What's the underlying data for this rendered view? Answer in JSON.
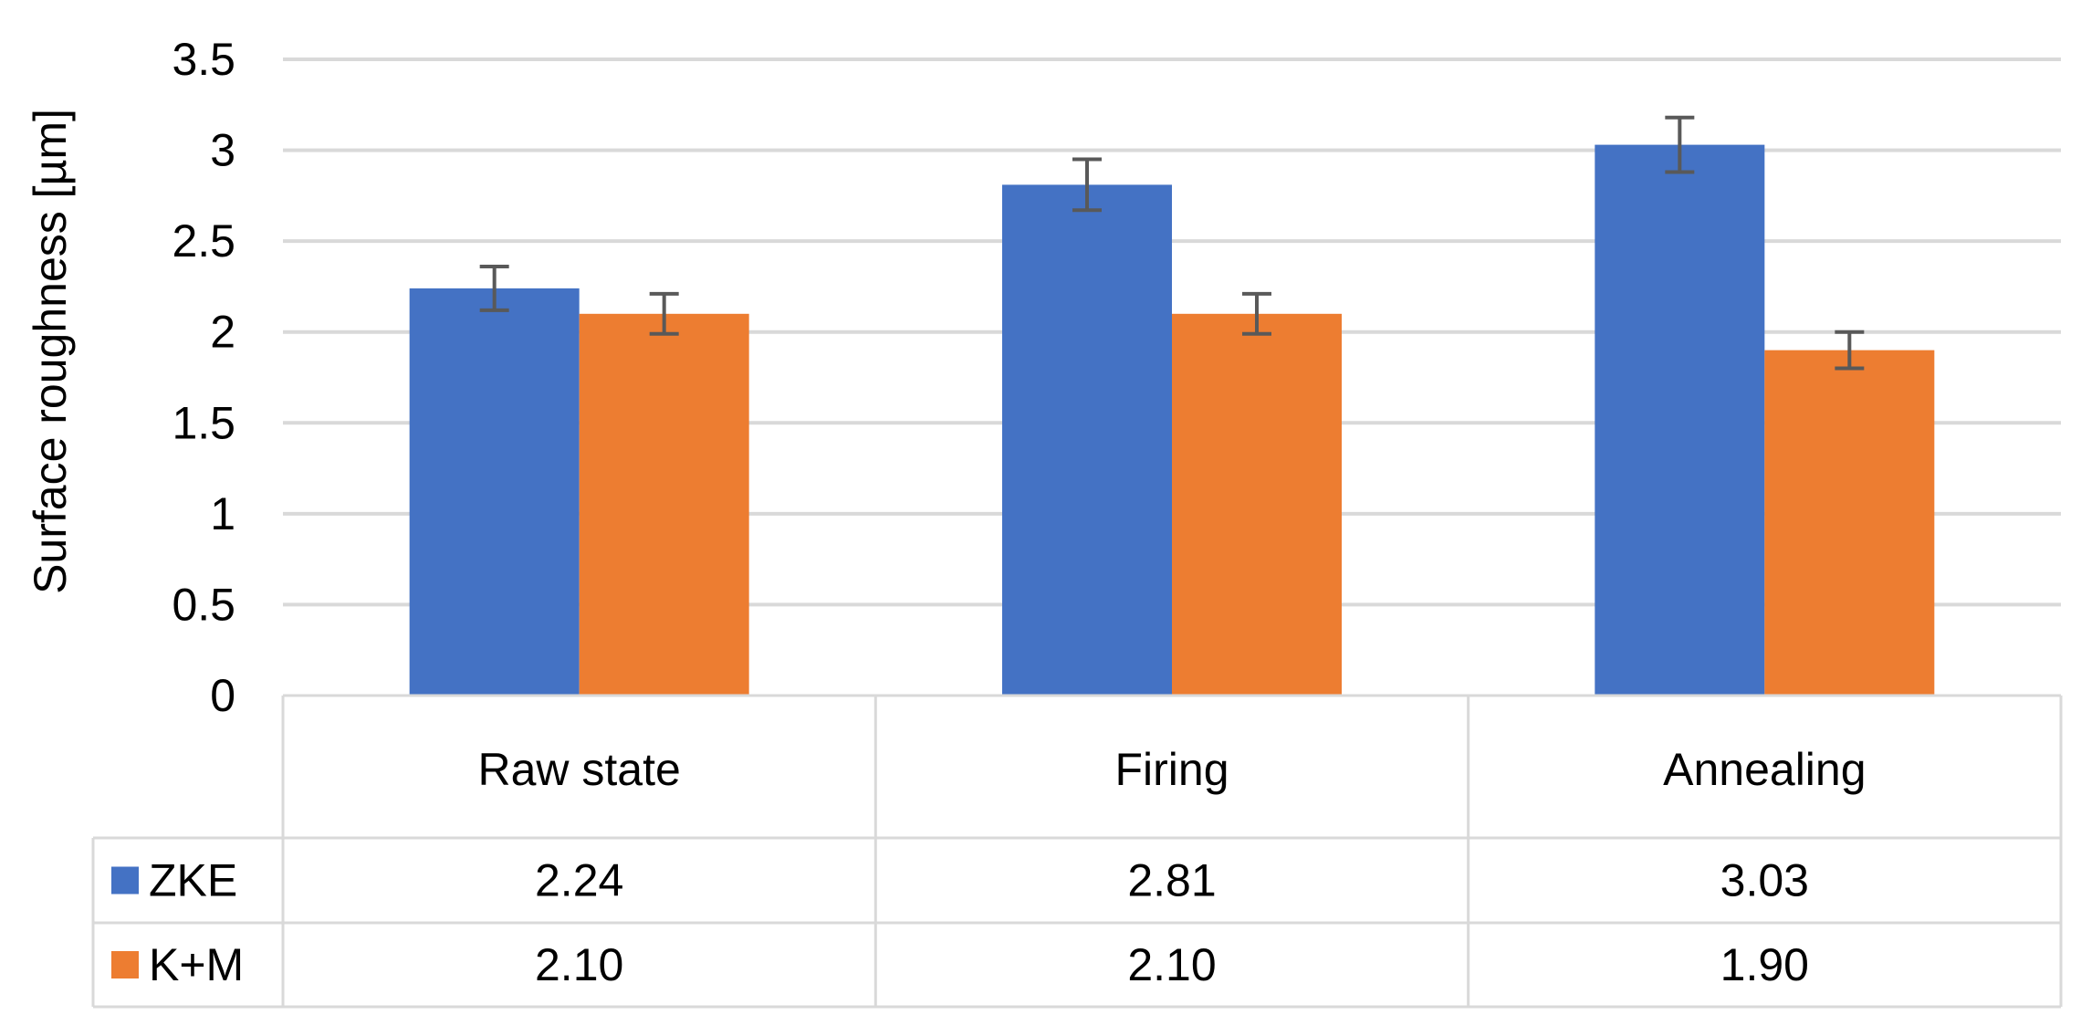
{
  "chart_data": {
    "type": "bar",
    "ylabel": "Surface roughness [µm]",
    "xlabel": "",
    "ylim": [
      0,
      3.5
    ],
    "ytick_step": 0.5,
    "yticks": [
      "0",
      "0.5",
      "1",
      "1.5",
      "2",
      "2.5",
      "3",
      "3.5"
    ],
    "grid": true,
    "legend": "data-table",
    "categories": [
      "Raw state",
      "Firing",
      "Annealing"
    ],
    "series": [
      {
        "name": "ZKE",
        "color": "#4472C4",
        "values": [
          2.24,
          2.81,
          3.03
        ],
        "errors": [
          0.12,
          0.14,
          0.15
        ],
        "labels": [
          "2.24",
          "2.81",
          "3.03"
        ]
      },
      {
        "name": "K+M",
        "color": "#ED7D31",
        "values": [
          2.1,
          2.1,
          1.9
        ],
        "errors": [
          0.11,
          0.11,
          0.1
        ],
        "labels": [
          "2.10",
          "2.10",
          "1.90"
        ]
      }
    ]
  }
}
